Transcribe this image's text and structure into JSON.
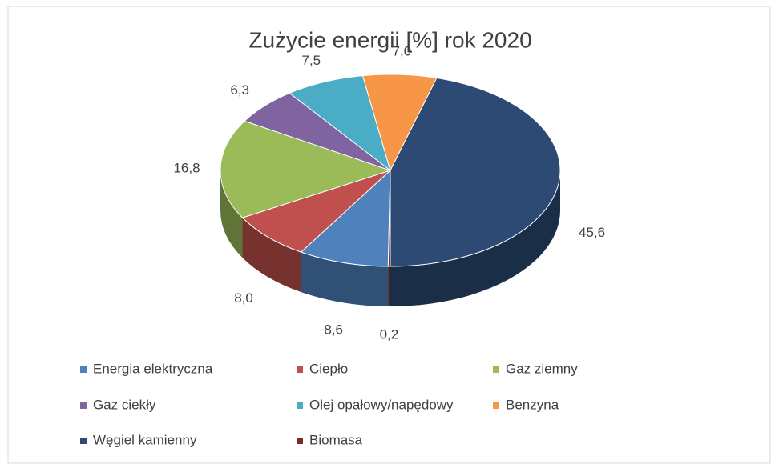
{
  "chart_data": {
    "type": "pie3d",
    "title": "Zużycie energii [%] rok 2020",
    "categories": [
      "Energia elektryczna",
      "Ciepło",
      "Gaz ziemny",
      "Gaz ciekły",
      "Olej opałowy/napędowy",
      "Benzyna",
      "Węgiel kamienny",
      "Biomasa"
    ],
    "values": [
      8.6,
      8.0,
      16.8,
      6.3,
      7.5,
      7.0,
      45.6,
      0.2
    ],
    "value_labels": [
      "8,6",
      "8,0",
      "16,8",
      "6,3",
      "7,5",
      "7,0",
      "45,6",
      "0,2"
    ],
    "colors": [
      "#4f81bd",
      "#c0504d",
      "#9bbb59",
      "#8064a2",
      "#4bacc6",
      "#f79646",
      "#2c4a74",
      "#7b2a2a"
    ],
    "legend": "bottom"
  }
}
